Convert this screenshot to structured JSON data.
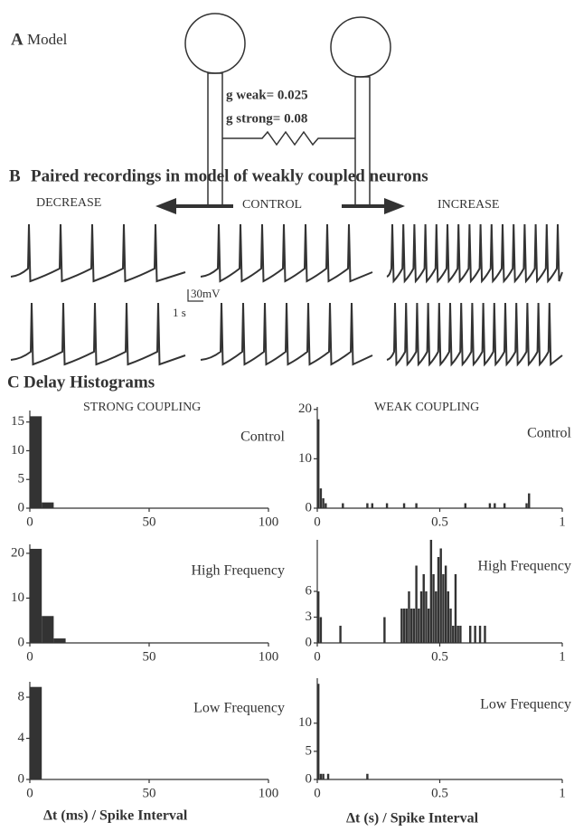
{
  "panel_a": {
    "letter": "A",
    "title": "Model",
    "g_weak": "g weak= 0.025",
    "g_strong": "g strong= 0.08"
  },
  "panel_b": {
    "letter": "B",
    "title": "Paired recordings  in model of weakly coupled neurons",
    "decrease": "DECREASE",
    "control": "CONTROL",
    "increase": "INCREASE",
    "scale_voltage": "30mV",
    "scale_time": "1 s"
  },
  "panel_c": {
    "letter": "C",
    "title": "Delay Histograms",
    "strong_heading": "STRONG COUPLING",
    "weak_heading": "WEAK COUPLING",
    "strong_xlabel": "Δt (ms) / Spike Interval",
    "weak_xlabel": "Δt (s) / Spike Interval"
  },
  "chart_data": [
    {
      "type": "histogram",
      "annotation": "Control",
      "color": "#333333",
      "bins": [
        0,
        5,
        10
      ],
      "values": [
        16,
        1
      ],
      "xlim": [
        0,
        100
      ],
      "xticks": [
        0,
        50,
        100
      ],
      "ylim": [
        0,
        17
      ],
      "yticks": [
        0,
        5,
        10,
        15
      ]
    },
    {
      "type": "histogram",
      "annotation": "Control",
      "color": "#333333",
      "bins": [
        0,
        0.01,
        0.02,
        0.03,
        0.04,
        0.1,
        0.11,
        0.2,
        0.21,
        0.22,
        0.23,
        0.28,
        0.29,
        0.35,
        0.36,
        0.4,
        0.41,
        0.6,
        0.61,
        0.7,
        0.71,
        0.72,
        0.73,
        0.76,
        0.77,
        0.85,
        0.86,
        0.87
      ],
      "values": [
        18,
        4,
        2,
        1,
        0,
        1,
        0,
        1,
        0,
        1,
        0,
        1,
        0,
        1,
        0,
        1,
        0,
        1,
        0,
        1,
        0,
        1,
        0,
        1,
        0,
        1,
        3
      ],
      "xlim": [
        0,
        1
      ],
      "xticks": [
        0,
        0.5,
        1
      ],
      "ylim": [
        0,
        20.5
      ],
      "yticks": [
        0,
        10,
        20
      ]
    },
    {
      "type": "histogram",
      "annotation": "High Frequency",
      "color": "#333333",
      "bins": [
        0,
        5,
        10,
        15
      ],
      "values": [
        21,
        6,
        1
      ],
      "xlim": [
        0,
        100
      ],
      "xticks": [
        0,
        50,
        100
      ],
      "ylim": [
        0,
        22
      ],
      "yticks": [
        0,
        10,
        20
      ]
    },
    {
      "type": "histogram",
      "annotation": "High Frequency",
      "color": "#333333",
      "bins": [
        0,
        0.01,
        0.02,
        0.09,
        0.1,
        0.27,
        0.28,
        0.34,
        0.35,
        0.36,
        0.37,
        0.38,
        0.39,
        0.4,
        0.41,
        0.42,
        0.43,
        0.44,
        0.45,
        0.46,
        0.47,
        0.48,
        0.49,
        0.5,
        0.51,
        0.52,
        0.53,
        0.54,
        0.55,
        0.56,
        0.57,
        0.58,
        0.59,
        0.62,
        0.63,
        0.64,
        0.65,
        0.66,
        0.67,
        0.68,
        0.69
      ],
      "values": [
        6,
        3,
        0,
        2,
        0,
        3,
        0,
        4,
        4,
        4,
        6,
        4,
        4,
        9,
        4,
        6,
        8,
        6,
        4,
        12,
        8,
        6,
        10,
        11,
        8,
        9,
        6,
        4,
        2,
        8,
        2,
        2,
        0,
        2,
        0,
        2,
        0,
        2,
        0,
        2
      ],
      "xlim": [
        0,
        1
      ],
      "xticks": [
        0,
        0.5,
        1
      ],
      "ylim": [
        0,
        12
      ],
      "yticks": [
        0,
        3,
        6
      ]
    },
    {
      "type": "histogram",
      "annotation": "Low Frequency",
      "color": "#333333",
      "bins": [
        0,
        5
      ],
      "values": [
        9
      ],
      "xlim": [
        0,
        100
      ],
      "xticks": [
        0,
        50,
        100
      ],
      "ylim": [
        0,
        9.5
      ],
      "yticks": [
        0,
        4,
        8
      ]
    },
    {
      "type": "histogram",
      "annotation": "Low Frequency",
      "color": "#333333",
      "bins": [
        0,
        0.01,
        0.02,
        0.03,
        0.04,
        0.05,
        0.2,
        0.21
      ],
      "values": [
        17,
        1,
        1,
        0,
        1,
        0,
        1
      ],
      "xlim": [
        0,
        1
      ],
      "xticks": [
        0,
        0.5,
        1
      ],
      "ylim": [
        0,
        18
      ],
      "yticks": [
        0,
        5,
        10
      ]
    }
  ]
}
